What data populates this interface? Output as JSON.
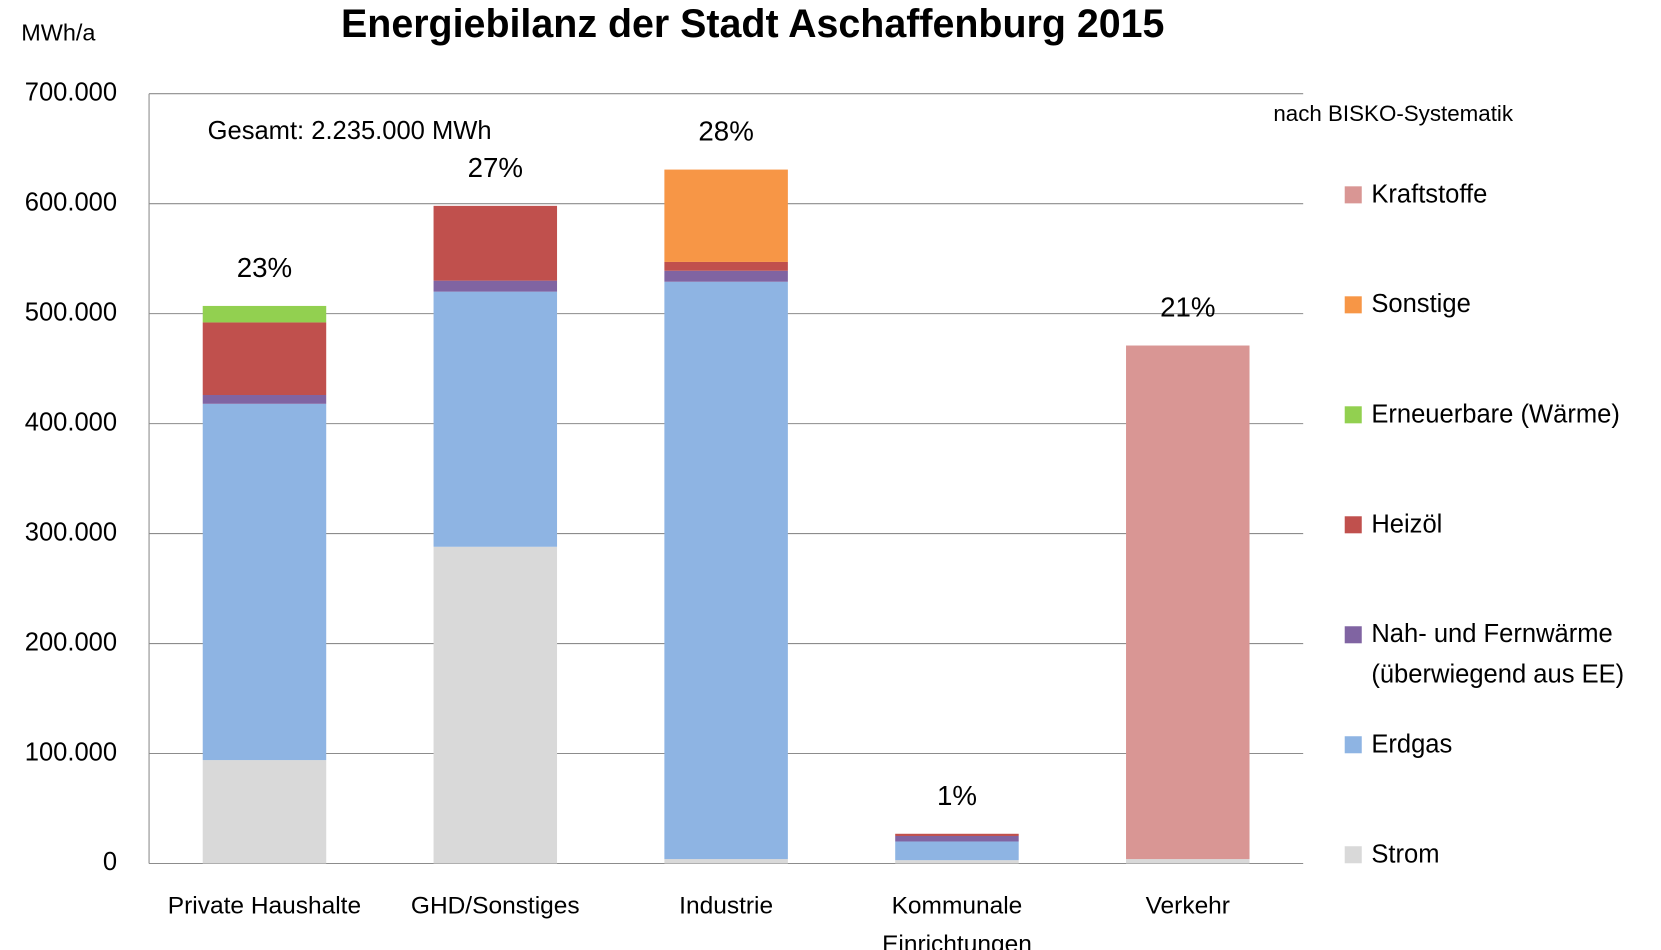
{
  "chart_data": {
    "type": "stacked_bar",
    "title": "Energiebilanz der Stadt Aschaffenburg 2015",
    "y_axis_label": "MWh/a",
    "annotations": [
      "Gesamt: 2.235.000 MWh",
      "nach BISKO-Systematik"
    ],
    "categories": [
      "Private Haushalte",
      "GHD/Sonstiges",
      "Industrie",
      "Kommunale Einrichtungen",
      "Verkehr"
    ],
    "percent_labels": [
      "23%",
      "27%",
      "28%",
      "1%",
      "21%"
    ],
    "series": [
      {
        "name": "Strom",
        "color": "#d9d9d9",
        "values": [
          94000,
          288000,
          4000,
          3000,
          4000
        ]
      },
      {
        "name": "Erdgas",
        "color": "#8eb4e3",
        "values": [
          324000,
          232000,
          525000,
          17000,
          null
        ]
      },
      {
        "name": "Nah- und Fernwärme (überwiegend aus EE)",
        "color": "#8064a2",
        "values": [
          8000,
          10000,
          10000,
          5000,
          null
        ]
      },
      {
        "name": "Heizöl",
        "color": "#c0504d",
        "values": [
          66000,
          68000,
          8000,
          2000,
          null
        ]
      },
      {
        "name": "Erneuerbare (Wärme)",
        "color": "#92d050",
        "values": [
          15000,
          null,
          null,
          null,
          null
        ]
      },
      {
        "name": "Sonstige",
        "color": "#f79646",
        "values": [
          null,
          null,
          84000,
          null,
          null
        ]
      },
      {
        "name": "Kraftstoffe",
        "color": "#d99694",
        "values": [
          null,
          null,
          null,
          null,
          467000
        ]
      }
    ],
    "ylim": [
      0,
      700000
    ],
    "yticks": [
      0,
      {
        "value": 100000,
        "label": "100.000"
      },
      {
        "value": 200000,
        "label": "200.000"
      },
      {
        "value": 300000,
        "label": "300.000"
      },
      {
        "value": 400000,
        "label": "400.000"
      },
      {
        "value": 500000,
        "label": "500.000"
      },
      {
        "value": 600000,
        "label": "600.000"
      },
      {
        "value": 700000,
        "label": "700.000"
      }
    ],
    "grid": true,
    "legend": "right"
  }
}
